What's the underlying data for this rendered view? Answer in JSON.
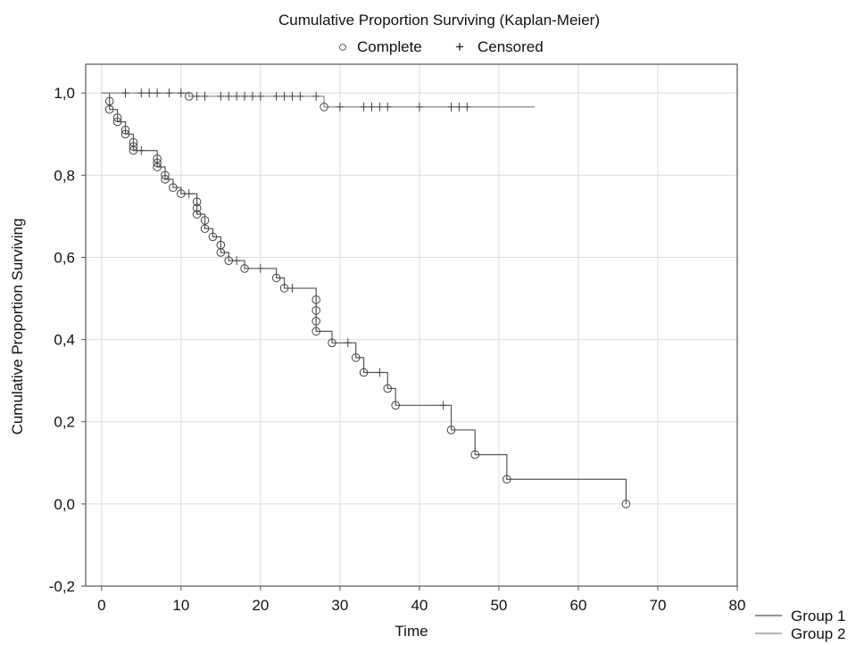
{
  "chart_data": {
    "type": "line",
    "title": "Cumulative Proportion Surviving (Kaplan-Meier)",
    "marker_legend": [
      {
        "symbol": "○",
        "label": "Complete"
      },
      {
        "symbol": "+",
        "label": "Censored"
      }
    ],
    "xlabel": "Time",
    "ylabel": "Cumulative Proportion Surviving",
    "xlim": [
      -2,
      80
    ],
    "ylim": [
      -0.2,
      1.07
    ],
    "x_ticks": [
      0,
      10,
      20,
      30,
      40,
      50,
      60,
      70,
      80
    ],
    "x_tick_labels": [
      "0",
      "10",
      "20",
      "30",
      "40",
      "50",
      "60",
      "70",
      "80"
    ],
    "y_ticks": [
      -0.2,
      0.0,
      0.2,
      0.4,
      0.6,
      0.8,
      1.0
    ],
    "y_tick_labels": [
      "-0,2",
      "0,0",
      "0,2",
      "0,4",
      "0,6",
      "0,8",
      "1,0"
    ],
    "grid": true,
    "legend_position": "bottom-right",
    "series": [
      {
        "name": "Group 1",
        "color": "#555555",
        "steps": [
          [
            0,
            1.0
          ],
          [
            1,
            0.98
          ],
          [
            1,
            0.96
          ],
          [
            2,
            0.94
          ],
          [
            2,
            0.93
          ],
          [
            3,
            0.91
          ],
          [
            3,
            0.9
          ],
          [
            4,
            0.88
          ],
          [
            4,
            0.87
          ],
          [
            4,
            0.86
          ],
          [
            7,
            0.84
          ],
          [
            7,
            0.83
          ],
          [
            7,
            0.82
          ],
          [
            8,
            0.8
          ],
          [
            8,
            0.79
          ],
          [
            9,
            0.77
          ],
          [
            10,
            0.755
          ],
          [
            12,
            0.735
          ],
          [
            12,
            0.72
          ],
          [
            12,
            0.705
          ],
          [
            13,
            0.69
          ],
          [
            13,
            0.67
          ],
          [
            14,
            0.65
          ],
          [
            15,
            0.63
          ],
          [
            15,
            0.612
          ],
          [
            16,
            0.592
          ],
          [
            18,
            0.573
          ],
          [
            22,
            0.55
          ],
          [
            23,
            0.525
          ],
          [
            27,
            0.497
          ],
          [
            27,
            0.471
          ],
          [
            27,
            0.445
          ],
          [
            27,
            0.42
          ],
          [
            29,
            0.392
          ],
          [
            32,
            0.356
          ],
          [
            33,
            0.32
          ],
          [
            36,
            0.281
          ],
          [
            37,
            0.24
          ],
          [
            44,
            0.18
          ],
          [
            47,
            0.12
          ],
          [
            51,
            0.06
          ],
          [
            66,
            0.0
          ]
        ],
        "end_x": 66,
        "complete": [
          [
            1,
            0.98
          ],
          [
            1,
            0.96
          ],
          [
            2,
            0.94
          ],
          [
            2,
            0.93
          ],
          [
            3,
            0.91
          ],
          [
            3,
            0.9
          ],
          [
            4,
            0.88
          ],
          [
            4,
            0.87
          ],
          [
            4,
            0.86
          ],
          [
            7,
            0.84
          ],
          [
            7,
            0.83
          ],
          [
            7,
            0.82
          ],
          [
            8,
            0.8
          ],
          [
            8,
            0.79
          ],
          [
            9,
            0.77
          ],
          [
            10,
            0.755
          ],
          [
            12,
            0.735
          ],
          [
            12,
            0.72
          ],
          [
            12,
            0.705
          ],
          [
            13,
            0.69
          ],
          [
            13,
            0.67
          ],
          [
            14,
            0.65
          ],
          [
            15,
            0.63
          ],
          [
            15,
            0.612
          ],
          [
            16,
            0.592
          ],
          [
            18,
            0.573
          ],
          [
            22,
            0.55
          ],
          [
            23,
            0.525
          ],
          [
            27,
            0.497
          ],
          [
            27,
            0.471
          ],
          [
            27,
            0.445
          ],
          [
            27,
            0.42
          ],
          [
            29,
            0.392
          ],
          [
            32,
            0.356
          ],
          [
            33,
            0.32
          ],
          [
            36,
            0.281
          ],
          [
            37,
            0.24
          ],
          [
            44,
            0.18
          ],
          [
            47,
            0.12
          ],
          [
            51,
            0.06
          ],
          [
            66,
            0.0
          ]
        ],
        "censored": [
          [
            5,
            0.86
          ],
          [
            11,
            0.755
          ],
          [
            17,
            0.592
          ],
          [
            20,
            0.573
          ],
          [
            24,
            0.525
          ],
          [
            31,
            0.392
          ],
          [
            35,
            0.32
          ],
          [
            43,
            0.24
          ]
        ]
      },
      {
        "name": "Group 2",
        "color": "#888888",
        "steps": [
          [
            0,
            1.0
          ],
          [
            11,
            0.992
          ],
          [
            28,
            0.966
          ]
        ],
        "end_x": 54.5,
        "complete": [
          [
            11,
            0.992
          ],
          [
            28,
            0.966
          ]
        ],
        "censored": [
          [
            3,
            1.0
          ],
          [
            5,
            1.0
          ],
          [
            6,
            1.0
          ],
          [
            7,
            1.0
          ],
          [
            8.5,
            1.0
          ],
          [
            10,
            1.0
          ],
          [
            12,
            0.992
          ],
          [
            13,
            0.992
          ],
          [
            15,
            0.992
          ],
          [
            16,
            0.992
          ],
          [
            17,
            0.992
          ],
          [
            18,
            0.992
          ],
          [
            19,
            0.992
          ],
          [
            20,
            0.992
          ],
          [
            22,
            0.992
          ],
          [
            23,
            0.992
          ],
          [
            24,
            0.992
          ],
          [
            25,
            0.992
          ],
          [
            27,
            0.992
          ],
          [
            30,
            0.966
          ],
          [
            33,
            0.966
          ],
          [
            34,
            0.966
          ],
          [
            35,
            0.966
          ],
          [
            36,
            0.966
          ],
          [
            40,
            0.966
          ],
          [
            44,
            0.966
          ],
          [
            45,
            0.966
          ],
          [
            46,
            0.966
          ]
        ]
      }
    ]
  }
}
